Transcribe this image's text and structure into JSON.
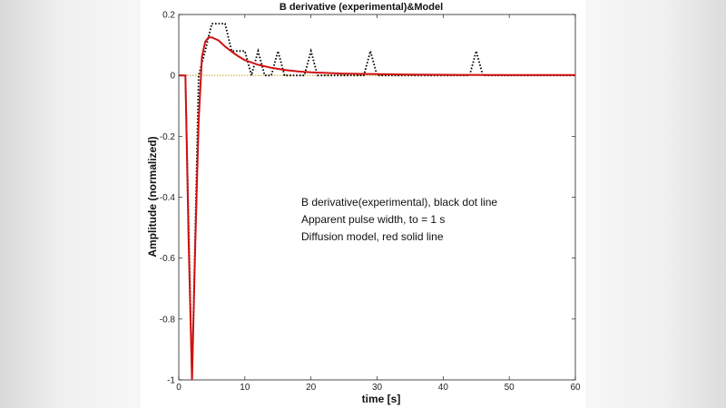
{
  "chart_data": {
    "type": "line",
    "title": "B derivative (experimental)&Model",
    "xlabel": "time [s]",
    "ylabel": "Amplitude (normalized)",
    "xlim": [
      0,
      60
    ],
    "ylim": [
      -1,
      0.2
    ],
    "xticks": [
      0,
      10,
      20,
      30,
      40,
      50,
      60
    ],
    "yticks": [
      0.2,
      0,
      -0.2,
      -0.4,
      -0.6,
      -0.8,
      -1
    ],
    "grid": false,
    "annotations": [
      "B derivative(experimental), black dot line",
      "Apparent pulse width, to = 1 s",
      "Diffusion model, red solid line"
    ],
    "series": [
      {
        "style": "dotted",
        "color": "#000000",
        "x": [
          0,
          1,
          2,
          3,
          4,
          5,
          6,
          7,
          8,
          9,
          10,
          11,
          12,
          13,
          14,
          15,
          16,
          17,
          19,
          20,
          21,
          28,
          29,
          30,
          44,
          45,
          46,
          60
        ],
        "y": [
          0,
          0,
          -1,
          0,
          0.08,
          0.17,
          0.17,
          0.17,
          0.08,
          0.08,
          0.08,
          0,
          0.08,
          0,
          0,
          0.08,
          0,
          0,
          0,
          0.08,
          0,
          0,
          0.08,
          0,
          0,
          0.08,
          0,
          0
        ]
      },
      {
        "style": "solid",
        "color": "#d01010",
        "x": [
          0,
          1,
          1.5,
          2,
          2.5,
          3,
          3.5,
          4,
          4.5,
          5,
          5.5,
          6,
          7,
          8,
          9,
          10,
          12,
          14,
          16,
          18,
          20,
          25,
          30,
          35,
          40,
          50,
          60
        ],
        "y": [
          0,
          0,
          -0.55,
          -1,
          -0.55,
          -0.15,
          0.06,
          0.11,
          0.125,
          0.125,
          0.12,
          0.115,
          0.095,
          0.078,
          0.063,
          0.05,
          0.035,
          0.025,
          0.018,
          0.013,
          0.01,
          0.006,
          0.004,
          0.003,
          0.002,
          0.001,
          0.001
        ]
      }
    ],
    "zero_line_color": "#b8a020"
  }
}
